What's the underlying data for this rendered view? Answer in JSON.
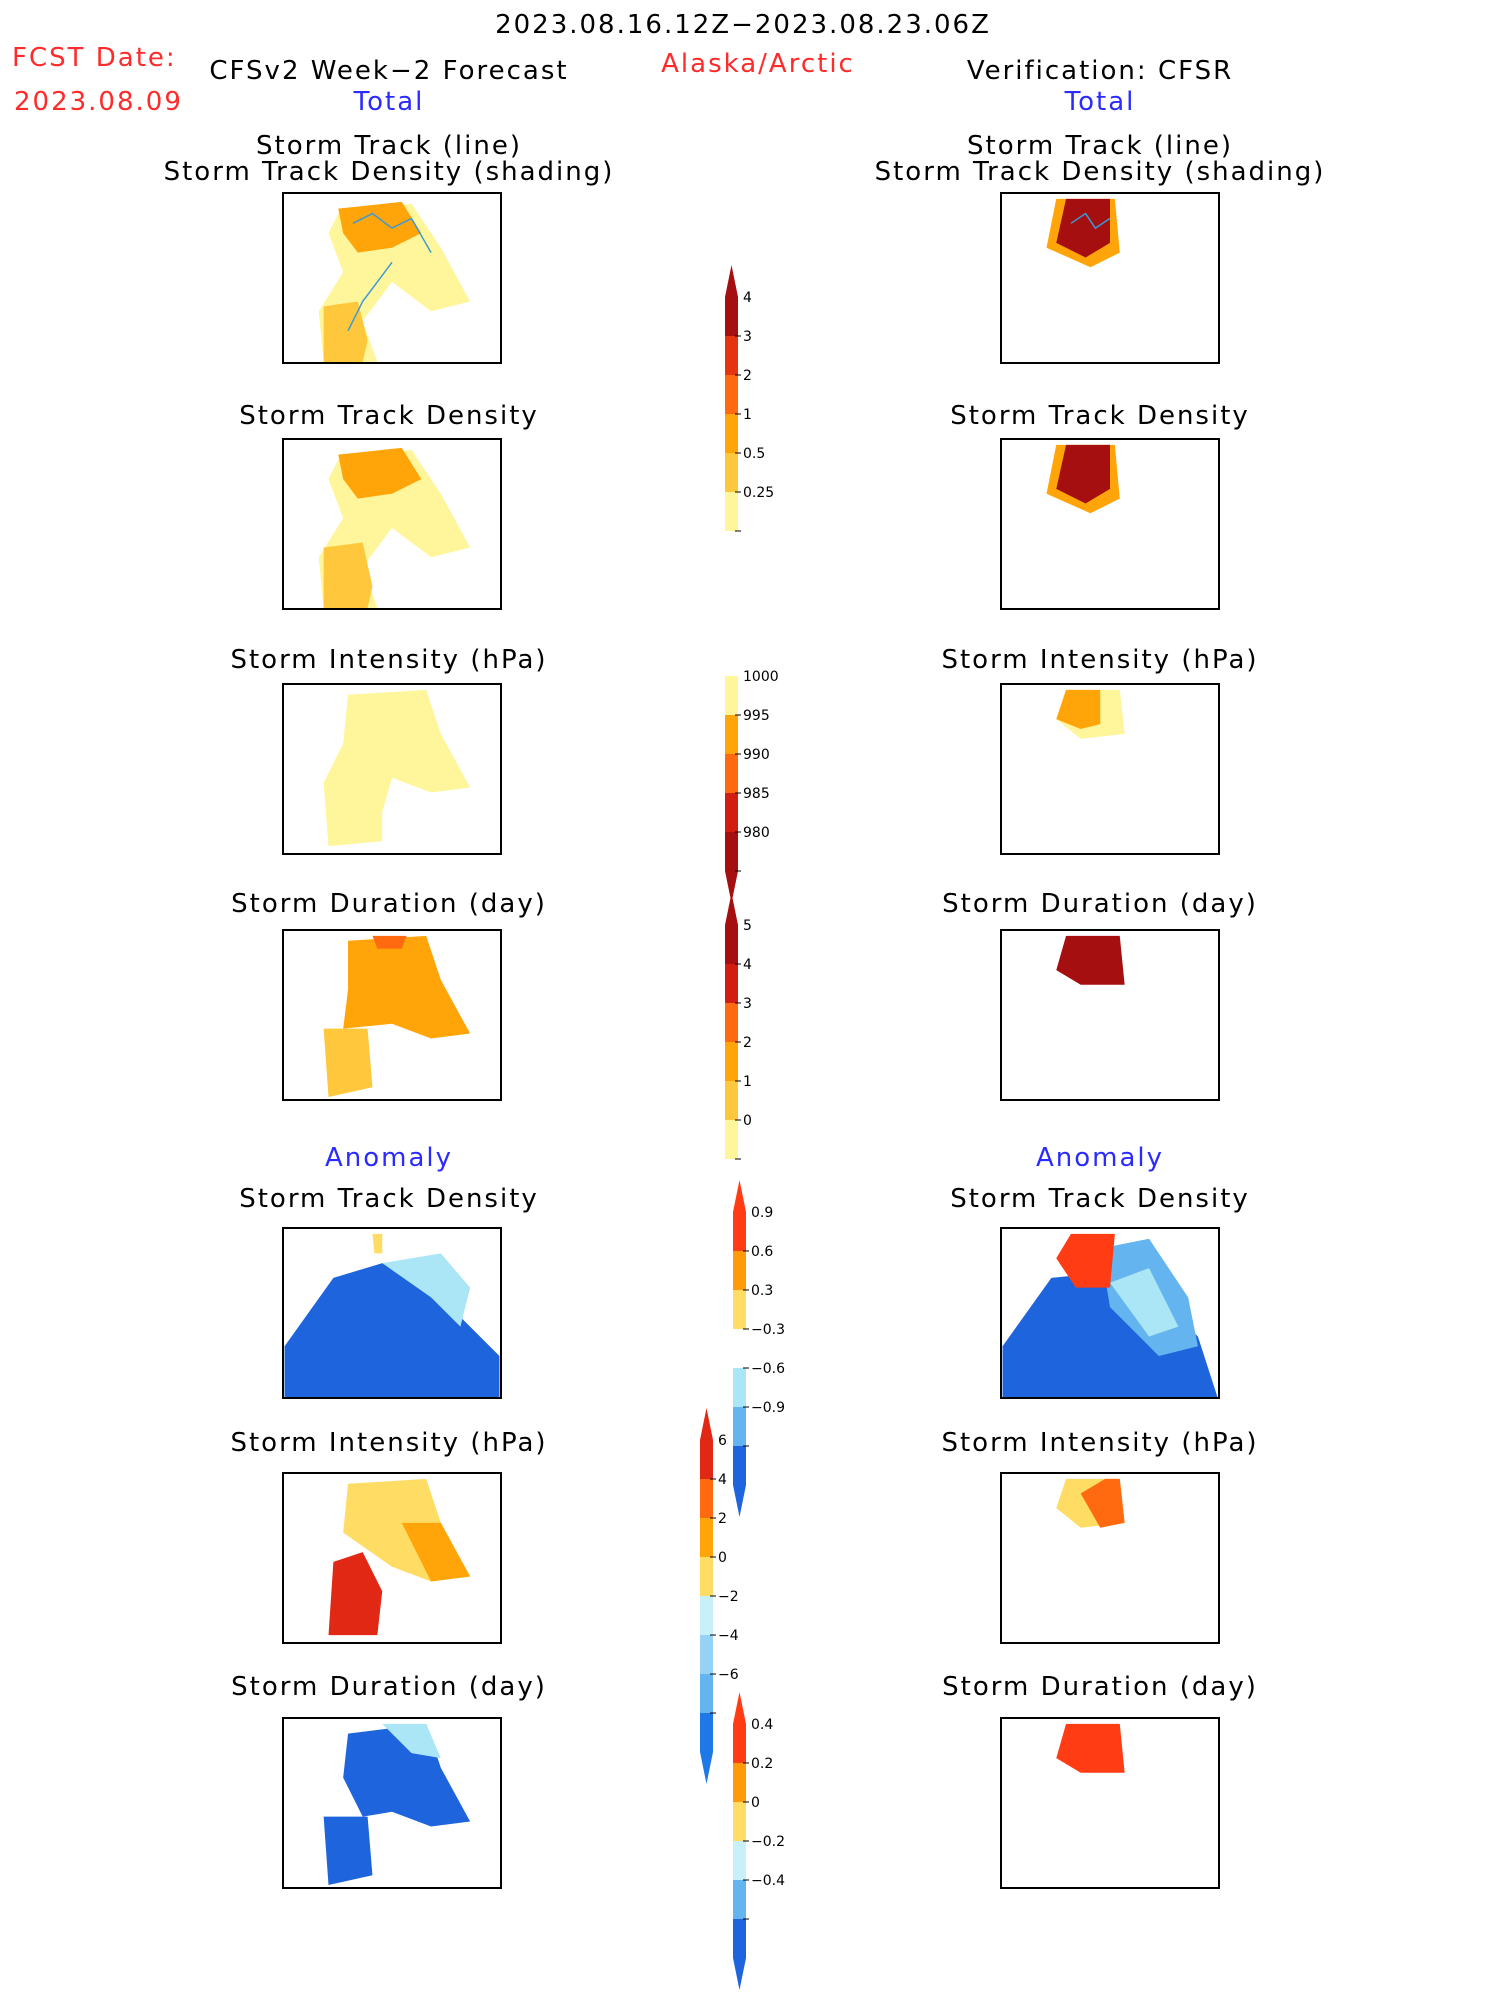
{
  "header": {
    "date_range": "2023.08.16.12Z−2023.08.23.06Z",
    "region": "Alaska/Arctic",
    "fcst_label": "FCST Date:",
    "fcst_date": "2023.08.09",
    "left_title": "CFSv2 Week−2 Forecast",
    "right_title": "Verification: CFSR"
  },
  "sections": {
    "total": "Total",
    "anomaly": "Anomaly"
  },
  "panel_titles": {
    "track_line": "Storm Track (line)",
    "track_density_shading": "Storm Track Density (shading)",
    "track_density": "Storm Track Density",
    "intensity": "Storm Intensity (hPa)",
    "duration": "Storm Duration (day)"
  },
  "colorbars": {
    "density": {
      "labels": [
        "4",
        "3",
        "2",
        "1",
        "0.5",
        "0.25"
      ],
      "colors": [
        "#a50f0f",
        "#e53510",
        "#ff6a10",
        "#ffa50a",
        "#ffc83c",
        "#fff59a"
      ]
    },
    "intensity": {
      "labels": [
        "1000",
        "995",
        "990",
        "985",
        "980"
      ],
      "colors": [
        "#fff59a",
        "#ffa50a",
        "#ff6a10",
        "#d21e10",
        "#a50f0f"
      ]
    },
    "duration": {
      "labels": [
        "5",
        "4",
        "3",
        "2",
        "1",
        "0"
      ],
      "colors": [
        "#a50f0f",
        "#d21e10",
        "#ff6a10",
        "#ffa50a",
        "#ffc83c",
        "#fff59a"
      ]
    },
    "anom_density": {
      "labels": [
        "0.9",
        "0.6",
        "0.3",
        "−0.3",
        "−0.6",
        "−0.9"
      ],
      "colors": [
        "#ff3c14",
        "#ff9a0a",
        "#ffdc64",
        "#ffffff",
        "#aae6f5",
        "#64b4f0",
        "#1e64dc"
      ]
    },
    "anom_intensity": {
      "labels": [
        "6",
        "4",
        "2",
        "0",
        "−2",
        "−4",
        "−6"
      ],
      "colors": [
        "#e02814",
        "#ff6a10",
        "#ffa50a",
        "#ffdc64",
        "#c8f0fa",
        "#96d2f5",
        "#64b4f0",
        "#1e78e6"
      ]
    },
    "anom_duration": {
      "labels": [
        "0.4",
        "0.2",
        "0",
        "−0.2",
        "−0.4"
      ],
      "colors": [
        "#ff3c14",
        "#ff9a0a",
        "#ffdc64",
        "#c8f0fa",
        "#64b4f0",
        "#1e64dc"
      ]
    }
  }
}
